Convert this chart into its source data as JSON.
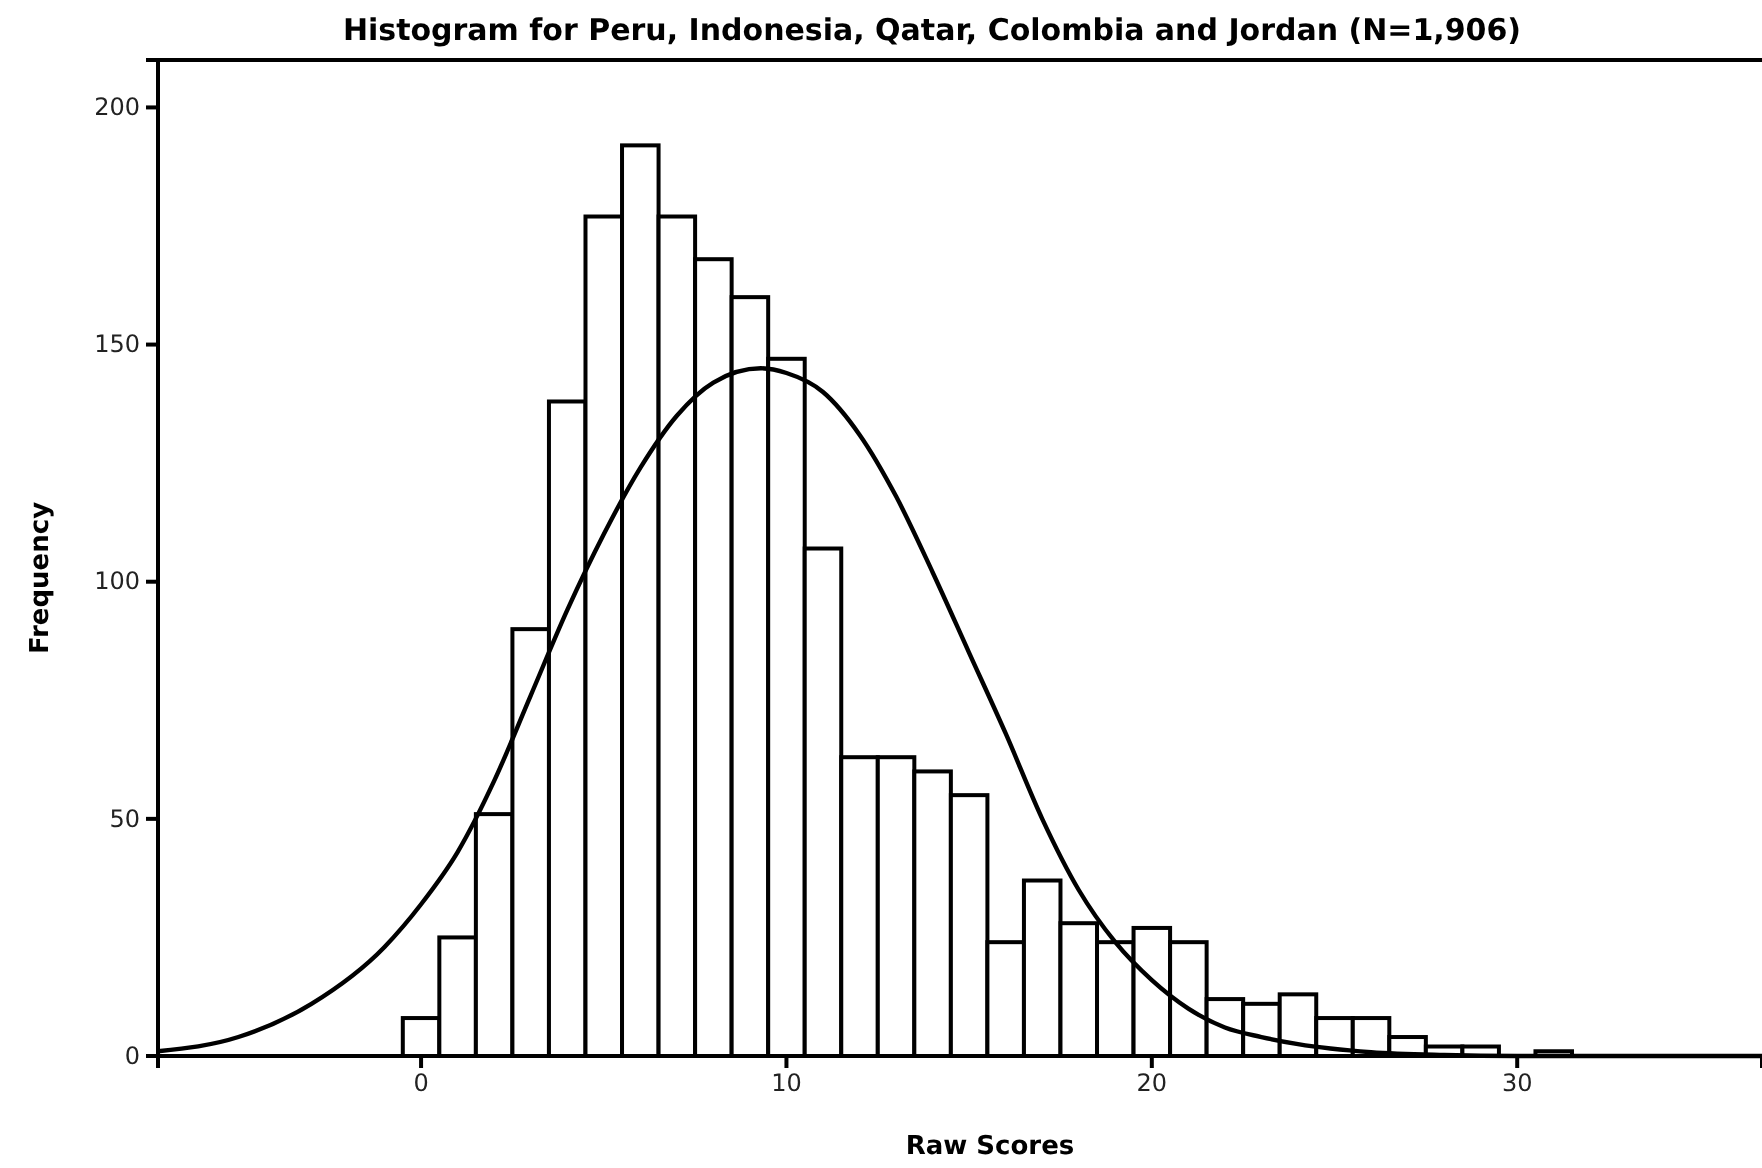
{
  "chart_data": {
    "type": "histogram",
    "title": "Histogram for Peru, Indonesia, Qatar, Colombia and Jordan (N=1,906)",
    "xlabel": "Raw Scores",
    "ylabel": "Frequency",
    "xlim": [
      -7.2,
      36.7
    ],
    "xticks": [
      0,
      10,
      20,
      30
    ],
    "ylim": [
      0,
      210
    ],
    "yticks": [
      0,
      50,
      100,
      150,
      200
    ],
    "series": [
      {
        "color": "#ffffff",
        "bins": [
          -0.5,
          0.5,
          1.5,
          2.5,
          3.5,
          4.5,
          5.5,
          6.5,
          7.5,
          8.5,
          9.5,
          10.5,
          11.5,
          12.5,
          13.5,
          14.5,
          15.5,
          16.5,
          17.5,
          18.5,
          19.5,
          20.5,
          21.5,
          22.5,
          23.5,
          24.5,
          25.5,
          26.5,
          27.5,
          28.5,
          29.5,
          30.5,
          31.5
        ],
        "values": [
          8,
          25,
          51,
          90,
          138,
          177,
          192,
          177,
          168,
          160,
          147,
          107,
          63,
          63,
          60,
          55,
          24,
          37,
          28,
          24,
          27,
          24,
          12,
          11,
          13,
          8,
          8,
          4,
          2,
          2,
          0,
          1
        ]
      },
      {
        "type": "line",
        "color": "#000000",
        "x": [
          -7.2,
          -5,
          -3,
          -1,
          0,
          1,
          2,
          3,
          4,
          5,
          6,
          7,
          8,
          9.3,
          10,
          11,
          12,
          13,
          14,
          15,
          16,
          17,
          18,
          19,
          20,
          21,
          22,
          23,
          24,
          26,
          28,
          30,
          36.7
        ],
        "values": [
          1,
          4,
          11,
          23,
          32,
          43,
          58,
          76,
          94,
          110,
          124,
          135,
          142,
          145,
          144,
          140,
          131,
          118,
          102,
          85,
          68,
          50,
          35,
          24,
          16,
          10,
          6,
          4,
          2.5,
          0.8,
          0.2,
          0,
          0
        ]
      }
    ]
  }
}
